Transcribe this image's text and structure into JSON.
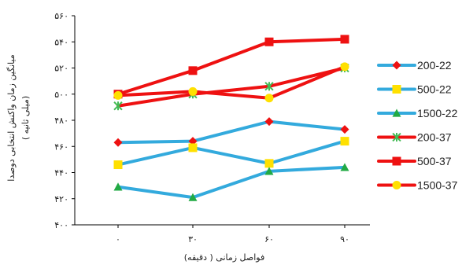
{
  "chart_data": {
    "type": "line",
    "title": "",
    "xlabel": "فواصل زمانی ( دقیقه)",
    "ylabel": "میانگین زمان واکنش انتخابی دوصدا",
    "ylabel_sub": "( میلی ثانیه)",
    "categories": [
      "۰",
      "۳۰",
      "۶۰",
      "۹۰"
    ],
    "x": [
      0,
      30,
      60,
      90
    ],
    "ylim": [
      400,
      560
    ],
    "yticks": [
      400,
      420,
      440,
      460,
      480,
      500,
      520,
      540,
      560
    ],
    "ytick_labels": [
      "۴۰۰",
      "۴۲۰",
      "۴۴۰",
      "۴۶۰",
      "۴۸۰",
      "۵۰۰",
      "۵۲۰",
      "۵۴۰",
      "۵۶۰"
    ],
    "legend_position": "right",
    "grid": false,
    "series": [
      {
        "name": "200-22",
        "line_color": "#33AADD",
        "marker": "diamond",
        "marker_color": "#EE1111",
        "values": [
          463,
          464,
          479,
          473
        ]
      },
      {
        "name": "500-22",
        "line_color": "#33AADD",
        "marker": "square",
        "marker_color": "#FFE000",
        "values": [
          446,
          459,
          447,
          464
        ]
      },
      {
        "name": "1500-22",
        "line_color": "#33AADD",
        "marker": "triangle",
        "marker_color": "#22AA44",
        "values": [
          429,
          421,
          441,
          444
        ]
      },
      {
        "name": "200-37",
        "line_color": "#EE1111",
        "marker": "star",
        "marker_color": "#44BB55",
        "values": [
          491,
          500,
          506,
          520
        ]
      },
      {
        "name": "500-37",
        "line_color": "#EE1111",
        "marker": "square",
        "marker_color": "#EE1111",
        "values": [
          500,
          518,
          540,
          542
        ]
      },
      {
        "name": "1500-37",
        "line_color": "#EE1111",
        "marker": "circle",
        "marker_color": "#FFE000",
        "values": [
          499,
          502,
          497,
          521
        ]
      }
    ]
  }
}
